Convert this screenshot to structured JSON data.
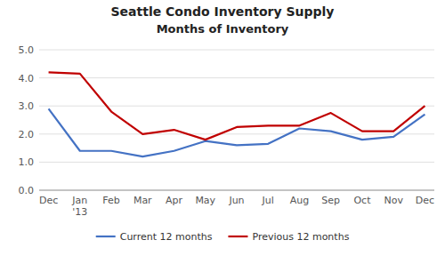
{
  "chart_data": {
    "type": "line",
    "title": "Seattle Condo Inventory Supply",
    "subtitle": "Months of Inventory",
    "categories": [
      "Dec",
      "Jan\n'13",
      "Feb",
      "Mar",
      "Apr",
      "May",
      "Jun",
      "Jul",
      "Aug",
      "Sep",
      "Oct",
      "Nov",
      "Dec"
    ],
    "series": [
      {
        "name": "Current 12 months",
        "color": "#4472C4",
        "values": [
          2.9,
          1.4,
          1.4,
          1.2,
          1.4,
          1.75,
          1.6,
          1.65,
          2.2,
          2.1,
          1.8,
          1.9,
          2.7
        ]
      },
      {
        "name": "Previous 12 months",
        "color": "#C00000",
        "values": [
          4.2,
          4.15,
          2.8,
          2.0,
          2.15,
          1.8,
          2.25,
          2.3,
          2.3,
          2.75,
          2.1,
          2.1,
          3.0
        ]
      }
    ],
    "ylim": [
      0.0,
      5.0
    ],
    "yticks": [
      {
        "value": 0.0,
        "label": "0.0"
      },
      {
        "value": 1.0,
        "label": "1.0"
      },
      {
        "value": 2.0,
        "label": "2.0"
      },
      {
        "value": 3.0,
        "label": "3.0"
      },
      {
        "value": 4.0,
        "label": "4.0"
      },
      {
        "value": 5.0,
        "label": "5.0"
      }
    ],
    "grid": true,
    "legend": "bottom"
  }
}
